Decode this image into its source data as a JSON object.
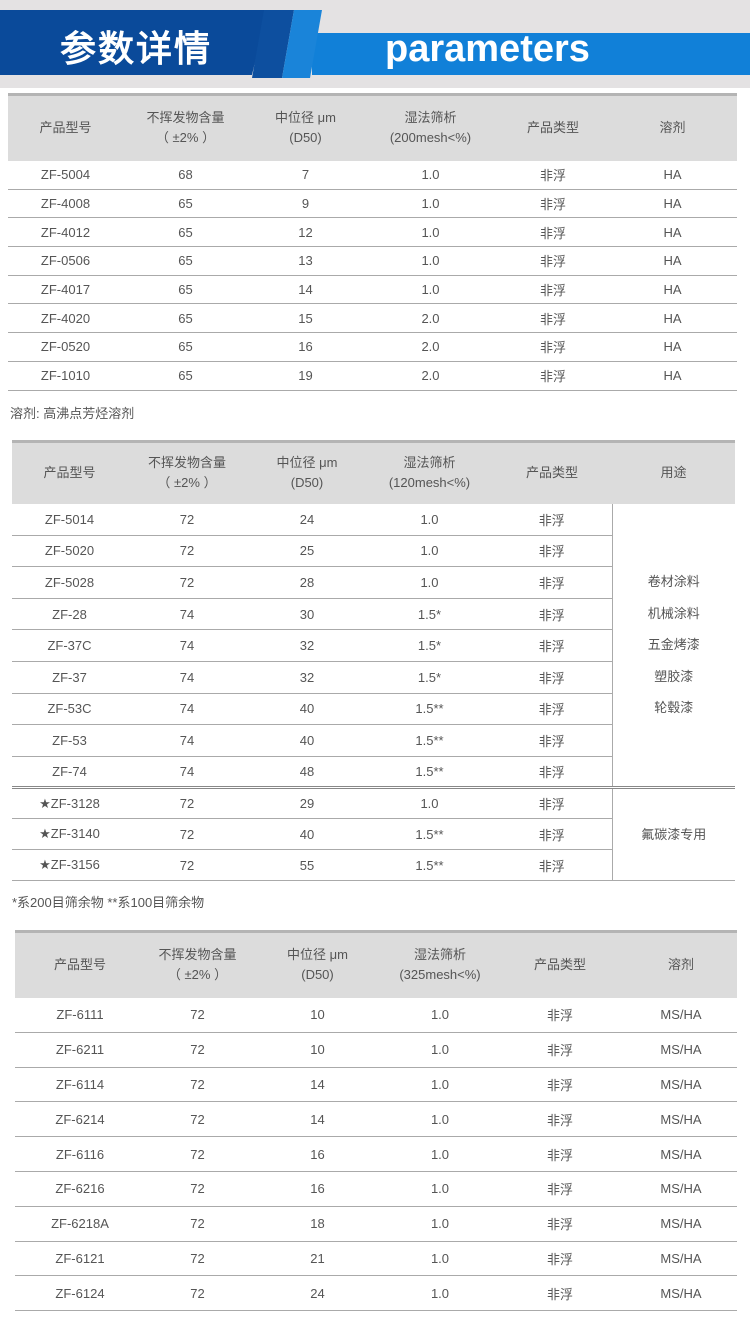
{
  "header": {
    "title_cn": "参数详情",
    "title_en": "parameters",
    "colors": {
      "dark_blue": "#0a4a9a",
      "light_blue": "#1180d8"
    }
  },
  "table1": {
    "headers": [
      [
        "产品型号"
      ],
      [
        "不挥发物含量",
        "（ ±2% ）"
      ],
      [
        "中位径 μm",
        "(D50)"
      ],
      [
        "湿法筛析",
        "(200mesh<%)"
      ],
      [
        "产品类型"
      ],
      [
        "溶剂"
      ]
    ],
    "rows": [
      [
        "ZF-5004",
        "68",
        "7",
        "1.0",
        "非浮",
        "HA"
      ],
      [
        "ZF-4008",
        "65",
        "9",
        "1.0",
        "非浮",
        "HA"
      ],
      [
        "ZF-4012",
        "65",
        "12",
        "1.0",
        "非浮",
        "HA"
      ],
      [
        "ZF-0506",
        "65",
        "13",
        "1.0",
        "非浮",
        "HA"
      ],
      [
        "ZF-4017",
        "65",
        "14",
        "1.0",
        "非浮",
        "HA"
      ],
      [
        "ZF-4020",
        "65",
        "15",
        "2.0",
        "非浮",
        "HA"
      ],
      [
        "ZF-0520",
        "65",
        "16",
        "2.0",
        "非浮",
        "HA"
      ],
      [
        "ZF-1010",
        "65",
        "19",
        "2.0",
        "非浮",
        "HA"
      ]
    ],
    "note": "溶剂: 高沸点芳烃溶剂"
  },
  "table2": {
    "headers": [
      [
        "产品型号"
      ],
      [
        "不挥发物含量",
        "（ ±2% ）"
      ],
      [
        "中位径 μm",
        "(D50)"
      ],
      [
        "湿法筛析",
        "(120mesh<%)"
      ],
      [
        "产品类型"
      ],
      [
        "用途"
      ]
    ],
    "group1": {
      "rows": [
        [
          "ZF-5014",
          "72",
          "24",
          "1.0",
          "非浮"
        ],
        [
          "ZF-5020",
          "72",
          "25",
          "1.0",
          "非浮"
        ],
        [
          "ZF-5028",
          "72",
          "28",
          "1.0",
          "非浮"
        ],
        [
          "ZF-28",
          "74",
          "30",
          "1.5*",
          "非浮"
        ],
        [
          "ZF-37C",
          "74",
          "32",
          "1.5*",
          "非浮"
        ],
        [
          "ZF-37",
          "74",
          "32",
          "1.5*",
          "非浮"
        ],
        [
          "ZF-53C",
          "74",
          "40",
          "1.5**",
          "非浮"
        ],
        [
          "ZF-53",
          "74",
          "40",
          "1.5**",
          "非浮"
        ],
        [
          "ZF-74",
          "74",
          "48",
          "1.5**",
          "非浮"
        ]
      ],
      "usage": [
        "卷材涂料",
        "机械涂料",
        "五金烤漆",
        "塑胶漆",
        "轮毂漆"
      ]
    },
    "group2": {
      "rows": [
        [
          "★ZF-3128",
          "72",
          "29",
          "1.0",
          "非浮"
        ],
        [
          "★ZF-3140",
          "72",
          "40",
          "1.5**",
          "非浮"
        ],
        [
          "★ZF-3156",
          "72",
          "55",
          "1.5**",
          "非浮"
        ]
      ],
      "usage": [
        "氟碳漆专用"
      ]
    },
    "note": "*系200目筛余物  **系100目筛余物"
  },
  "table3": {
    "headers": [
      [
        "产品型号"
      ],
      [
        "不挥发物含量",
        "（ ±2% ）"
      ],
      [
        "中位径 μm",
        "(D50)"
      ],
      [
        "湿法筛析",
        "(325mesh<%)"
      ],
      [
        "产品类型"
      ],
      [
        "溶剂"
      ]
    ],
    "rows": [
      [
        "ZF-6111",
        "72",
        "10",
        "1.0",
        "非浮",
        "MS/HA"
      ],
      [
        "ZF-6211",
        "72",
        "10",
        "1.0",
        "非浮",
        "MS/HA"
      ],
      [
        "ZF-6114",
        "72",
        "14",
        "1.0",
        "非浮",
        "MS/HA"
      ],
      [
        "ZF-6214",
        "72",
        "14",
        "1.0",
        "非浮",
        "MS/HA"
      ],
      [
        "ZF-6116",
        "72",
        "16",
        "1.0",
        "非浮",
        "MS/HA"
      ],
      [
        "ZF-6216",
        "72",
        "16",
        "1.0",
        "非浮",
        "MS/HA"
      ],
      [
        "ZF-6218A",
        "72",
        "18",
        "1.0",
        "非浮",
        "MS/HA"
      ],
      [
        "ZF-6121",
        "72",
        "21",
        "1.0",
        "非浮",
        "MS/HA"
      ],
      [
        "ZF-6124",
        "72",
        "24",
        "1.0",
        "非浮",
        "MS/HA"
      ]
    ]
  }
}
